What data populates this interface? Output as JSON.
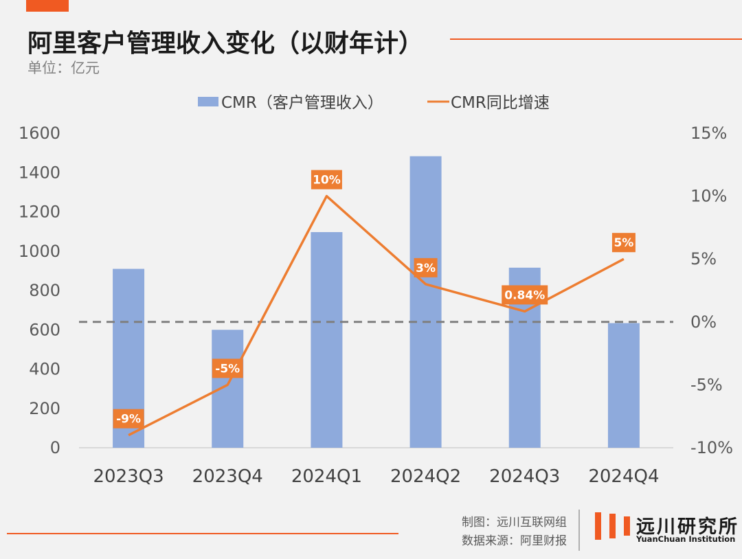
{
  "header": {
    "title": "阿里客户管理收入变化（以财年计）",
    "unit": "单位：亿元"
  },
  "colors": {
    "bar": "#8eaadc",
    "line": "#ed7d31",
    "accent": "#f05a22",
    "zero_line": "#7f7f7f"
  },
  "chart_data": {
    "type": "bar+line",
    "categories": [
      "2023Q3",
      "2023Q4",
      "2024Q1",
      "2024Q2",
      "2024Q3",
      "2024Q4"
    ],
    "series": [
      {
        "name": "CMR（客户管理收入）",
        "type": "bar",
        "axis": "left",
        "values": [
          910,
          600,
          1097,
          1483,
          916,
          634
        ]
      },
      {
        "name": "CMR同比增速",
        "type": "line",
        "axis": "right",
        "values": [
          -9,
          -5,
          10,
          3,
          0.84,
          5
        ],
        "labels": [
          "-9%",
          "-5%",
          "10%",
          "3%",
          "0.84%",
          "5%"
        ]
      }
    ],
    "y_left": {
      "range": [
        0,
        1600
      ],
      "ticks": [
        "0",
        "200",
        "400",
        "600",
        "800",
        "1000",
        "1200",
        "1400",
        "1600"
      ]
    },
    "y_right": {
      "range": [
        -10,
        15
      ],
      "ticks": [
        "-10%",
        "-5%",
        "0%",
        "5%",
        "10%",
        "15%"
      ],
      "zero_line": "dashed"
    },
    "legend": "top-center",
    "grid": false
  },
  "footer": {
    "credit": "制图：远川互联网组",
    "source": "数据来源：阿里财报",
    "brand_cn": "远川研究所",
    "brand_en": "YuanChuan Institution"
  }
}
